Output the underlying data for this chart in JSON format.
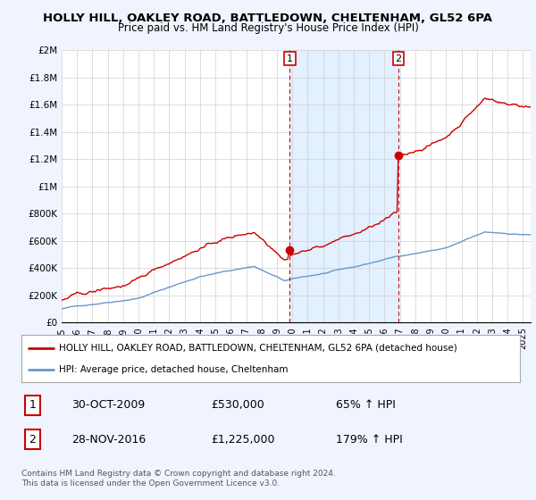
{
  "title": "HOLLY HILL, OAKLEY ROAD, BATTLEDOWN, CHELTENHAM, GL52 6PA",
  "subtitle": "Price paid vs. HM Land Registry's House Price Index (HPI)",
  "ylim": [
    0,
    2000000
  ],
  "yticks": [
    0,
    200000,
    400000,
    600000,
    800000,
    1000000,
    1200000,
    1400000,
    1600000,
    1800000,
    2000000
  ],
  "ytick_labels": [
    "£0",
    "£200K",
    "£400K",
    "£600K",
    "£800K",
    "£1M",
    "£1.2M",
    "£1.4M",
    "£1.6M",
    "£1.8M",
    "£2M"
  ],
  "xlim_start": 1995.0,
  "xlim_end": 2025.5,
  "xtick_years": [
    1995,
    1996,
    1997,
    1998,
    1999,
    2000,
    2001,
    2002,
    2003,
    2004,
    2005,
    2006,
    2007,
    2008,
    2009,
    2010,
    2011,
    2012,
    2013,
    2014,
    2015,
    2016,
    2017,
    2018,
    2019,
    2020,
    2021,
    2022,
    2023,
    2024,
    2025
  ],
  "bg_color": "#f0f4ff",
  "plot_bg": "#ffffff",
  "red_color": "#cc0000",
  "blue_color": "#6699cc",
  "shade_color": "#ddeeff",
  "marker1_x": 2009.83,
  "marker1_y": 530000,
  "marker2_x": 2016.91,
  "marker2_y": 1225000,
  "legend_label_red": "HOLLY HILL, OAKLEY ROAD, BATTLEDOWN, CHELTENHAM, GL52 6PA (detached house)",
  "legend_label_blue": "HPI: Average price, detached house, Cheltenham",
  "table_row1": [
    "1",
    "30-OCT-2009",
    "£530,000",
    "65% ↑ HPI"
  ],
  "table_row2": [
    "2",
    "28-NOV-2016",
    "£1,225,000",
    "179% ↑ HPI"
  ],
  "footer": "Contains HM Land Registry data © Crown copyright and database right 2024.\nThis data is licensed under the Open Government Licence v3.0."
}
